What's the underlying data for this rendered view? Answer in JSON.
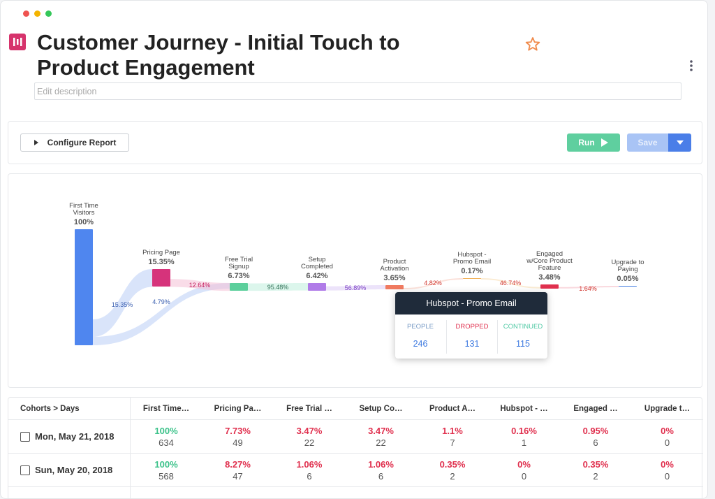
{
  "header": {
    "title": "Customer Journey - Initial Touch to Product Engagement",
    "description_placeholder": "Edit description"
  },
  "toolbar": {
    "configure": "Configure Report",
    "run": "Run",
    "save": "Save"
  },
  "chart_data": {
    "type": "funnel",
    "categories": [
      "First Time Visitors",
      "Pricing Page",
      "Free Trial Signup",
      "Setup Completed",
      "Product Activation",
      "Hubspot - Promo Email",
      "Engaged w/Core Product Feature",
      "Upgrade to Paying"
    ],
    "values": [
      100,
      15.35,
      6.73,
      6.42,
      3.65,
      0.17,
      3.48,
      0.05
    ],
    "value_labels": [
      "100%",
      "15.35%",
      "6.73%",
      "6.42%",
      "3.65%",
      "0.17%",
      "3.48%",
      "0.05%"
    ],
    "colors": [
      "#4f86ef",
      "#d6337b",
      "#5ccf9c",
      "#b07be8",
      "#f07a60",
      "#f2b35b",
      "#e0304e",
      "#3f7be0"
    ],
    "transition_labels": [
      "15.35%",
      "4.79%",
      "12.64%",
      "95.48%",
      "56.89%",
      "4.82%",
      "46.74%",
      "1.64%"
    ]
  },
  "tooltip": {
    "title": "Hubspot - Promo Email",
    "columns": [
      {
        "label": "PEOPLE",
        "value": 246
      },
      {
        "label": "DROPPED",
        "value": 131
      },
      {
        "label": "CONTINUED",
        "value": 115
      }
    ]
  },
  "table": {
    "headers": [
      "Cohorts > Days",
      "First Time…",
      "Pricing Pa…",
      "Free Trial …",
      "Setup Co…",
      "Product A…",
      "Hubspot - …",
      "Engaged …",
      "Upgrade t…"
    ],
    "rows": [
      {
        "date": "Mon, May 21, 2018",
        "cells": [
          {
            "pct": "100%",
            "count": 634
          },
          {
            "pct": "7.73%",
            "count": 49
          },
          {
            "pct": "3.47%",
            "count": 22
          },
          {
            "pct": "3.47%",
            "count": 22
          },
          {
            "pct": "1.1%",
            "count": 7
          },
          {
            "pct": "0.16%",
            "count": 1
          },
          {
            "pct": "0.95%",
            "count": 6
          },
          {
            "pct": "0%",
            "count": 0
          }
        ]
      },
      {
        "date": "Sun, May 20, 2018",
        "cells": [
          {
            "pct": "100%",
            "count": 568
          },
          {
            "pct": "8.27%",
            "count": 47
          },
          {
            "pct": "1.06%",
            "count": 6
          },
          {
            "pct": "1.06%",
            "count": 6
          },
          {
            "pct": "0.35%",
            "count": 2
          },
          {
            "pct": "0%",
            "count": 0
          },
          {
            "pct": "0.35%",
            "count": 2
          },
          {
            "pct": "0%",
            "count": 0
          }
        ]
      }
    ]
  }
}
